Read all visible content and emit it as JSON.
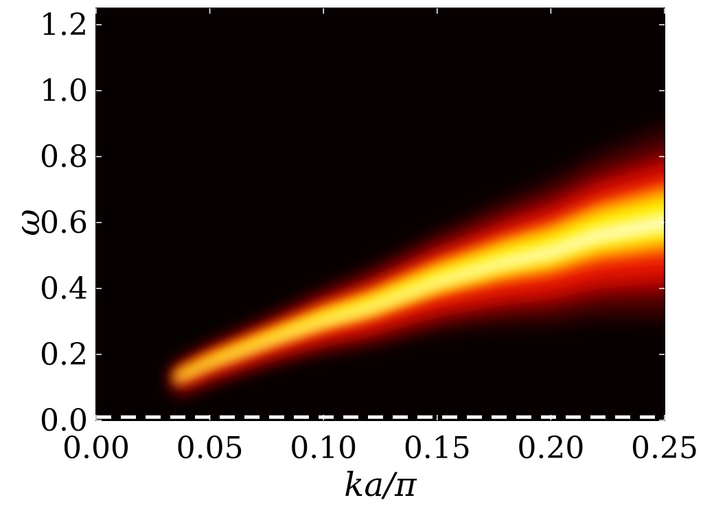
{
  "chart_data": {
    "type": "heatmap",
    "title": "",
    "xlabel": "ka/π",
    "ylabel": "ω",
    "xlim": [
      0.0,
      0.25
    ],
    "ylim": [
      0.0,
      1.25
    ],
    "x_ticks": [
      "0.00",
      "0.05",
      "0.10",
      "0.15",
      "0.20",
      "0.25"
    ],
    "x_tick_values": [
      0.0,
      0.05,
      0.1,
      0.15,
      0.2,
      0.25
    ],
    "y_ticks": [
      "0.0",
      "0.2",
      "0.4",
      "0.6",
      "0.8",
      "1.0",
      "1.2"
    ],
    "y_tick_values": [
      0.0,
      0.2,
      0.4,
      0.6,
      0.8,
      1.0,
      1.2
    ],
    "colormap": "hot",
    "background_color": "#070000",
    "reference_line": {
      "style": "dashed",
      "color": "#ffffff",
      "y": 0.01
    },
    "band": {
      "x_start": 0.035,
      "center_line": [
        [
          0.035,
          0.12
        ],
        [
          0.05,
          0.17
        ],
        [
          0.08,
          0.25
        ],
        [
          0.1,
          0.3
        ],
        [
          0.12,
          0.34
        ],
        [
          0.15,
          0.42
        ],
        [
          0.18,
          0.48
        ],
        [
          0.2,
          0.51
        ],
        [
          0.22,
          0.56
        ],
        [
          0.25,
          0.6
        ]
      ],
      "half_width": [
        [
          0.035,
          0.03
        ],
        [
          0.08,
          0.05
        ],
        [
          0.12,
          0.08
        ],
        [
          0.16,
          0.11
        ],
        [
          0.2,
          0.15
        ],
        [
          0.25,
          0.2
        ]
      ]
    },
    "grid": false,
    "legend": "none"
  }
}
